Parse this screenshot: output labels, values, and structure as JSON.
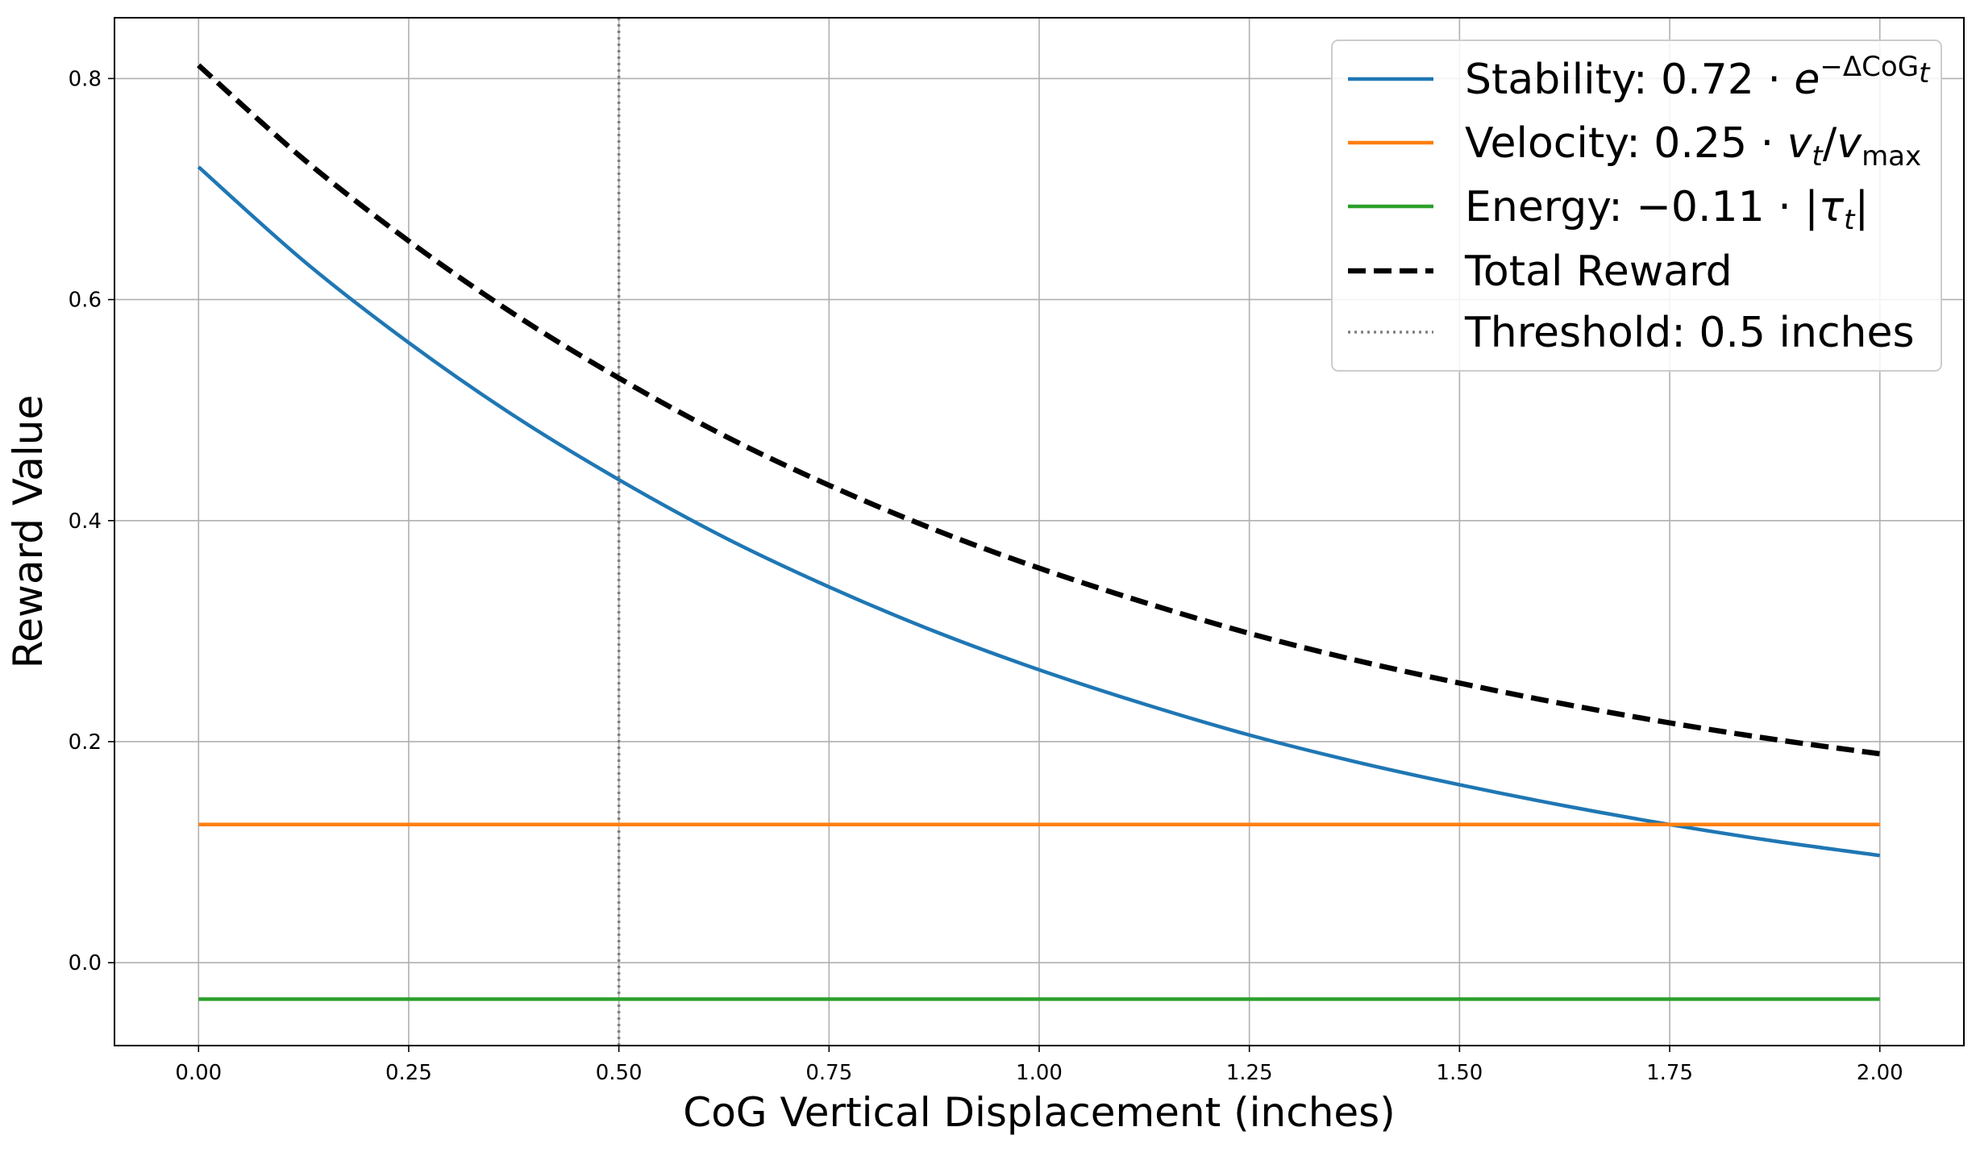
{
  "chart_data": {
    "type": "line",
    "title": "",
    "xlabel": "CoG Vertical Displacement (inches)",
    "ylabel": "Reward Value",
    "xlim": [
      -0.1,
      2.1
    ],
    "ylim": [
      -0.075,
      0.855
    ],
    "grid": true,
    "legend_position": "top-right",
    "x_ticks": [
      0.0,
      0.25,
      0.5,
      0.75,
      1.0,
      1.25,
      1.5,
      1.75,
      2.0
    ],
    "x_tick_labels": [
      "0.00",
      "0.25",
      "0.50",
      "0.75",
      "1.00",
      "1.25",
      "1.50",
      "1.75",
      "2.00"
    ],
    "y_ticks": [
      0.0,
      0.2,
      0.4,
      0.6,
      0.8
    ],
    "y_tick_labels": [
      "0.0",
      "0.2",
      "0.4",
      "0.6",
      "0.8"
    ],
    "x": [
      0.0,
      0.125,
      0.25,
      0.375,
      0.5,
      0.625,
      0.75,
      0.875,
      1.0,
      1.125,
      1.25,
      1.375,
      1.5,
      1.625,
      1.75,
      1.875,
      2.0
    ],
    "series": [
      {
        "key": "stability",
        "name": "Stability: 0.72 · e^(−ΔCoG_t)",
        "color": "#1f77b4",
        "style": "solid",
        "values": [
          0.72,
          0.635,
          0.561,
          0.495,
          0.437,
          0.385,
          0.34,
          0.3,
          0.265,
          0.234,
          0.206,
          0.182,
          0.161,
          0.142,
          0.125,
          0.11,
          0.097
        ]
      },
      {
        "key": "velocity",
        "name": "Velocity: 0.25 · v_t/v_max",
        "color": "#ff7f0e",
        "style": "solid",
        "values": [
          0.125,
          0.125,
          0.125,
          0.125,
          0.125,
          0.125,
          0.125,
          0.125,
          0.125,
          0.125,
          0.125,
          0.125,
          0.125,
          0.125,
          0.125,
          0.125,
          0.125
        ]
      },
      {
        "key": "energy",
        "name": "Energy: −0.11 · |τ_t|",
        "color": "#2ca02c",
        "style": "solid",
        "values": [
          -0.033,
          -0.033,
          -0.033,
          -0.033,
          -0.033,
          -0.033,
          -0.033,
          -0.033,
          -0.033,
          -0.033,
          -0.033,
          -0.033,
          -0.033,
          -0.033,
          -0.033,
          -0.033,
          -0.033
        ]
      },
      {
        "key": "total",
        "name": "Total Reward",
        "color": "#000000",
        "style": "dashed",
        "values": [
          0.812,
          0.727,
          0.653,
          0.587,
          0.529,
          0.477,
          0.432,
          0.392,
          0.357,
          0.326,
          0.298,
          0.274,
          0.253,
          0.234,
          0.217,
          0.202,
          0.189
        ]
      }
    ],
    "vlines": [
      {
        "name": "Threshold: 0.5 inches",
        "x": 0.5,
        "color": "#808080",
        "style": "dotted"
      }
    ]
  },
  "legend": {
    "stability": {
      "prefix": "Stability: 0.72 · ",
      "base": "e",
      "sup": "−ΔCoG",
      "sup_sub": "t"
    },
    "velocity": {
      "prefix": "Velocity: 0.25 · ",
      "v1": "v",
      "sub1": "t",
      "slash": "/",
      "v2": "v",
      "sub2": "max"
    },
    "energy": {
      "prefix": "Energy: −0.11 · |",
      "tau": "τ",
      "sub": "t",
      "suffix": "|"
    },
    "total": {
      "label": "Total Reward"
    },
    "threshold": {
      "label": "Threshold: 0.5 inches"
    }
  }
}
